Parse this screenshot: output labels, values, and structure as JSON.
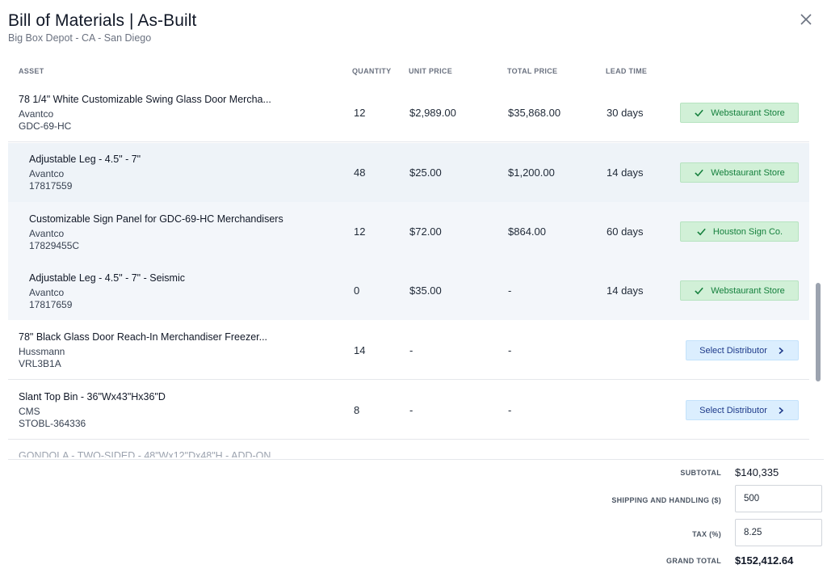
{
  "header": {
    "title": "Bill of Materials | As-Built",
    "subtitle": "Big Box Depot - CA - San Diego"
  },
  "columns": {
    "asset": "ASSET",
    "quantity": "QUANTITY",
    "unit_price": "UNIT PRICE",
    "total_price": "TOTAL PRICE",
    "lead_time": "LEAD TIME"
  },
  "rows": [
    {
      "name": "78 1/4\" White Customizable Swing Glass Door Mercha...",
      "brand": "Avantco",
      "sku": "GDC-69-HC",
      "qty": "12",
      "unit": "$2,989.00",
      "total": "$35,868.00",
      "lead": "30 days",
      "distributor": "Webstaurant Store"
    },
    {
      "name": "Adjustable Leg - 4.5\" - 7\"",
      "brand": "Avantco",
      "sku": "17817559",
      "qty": "48",
      "unit": "$25.00",
      "total": "$1,200.00",
      "lead": "14 days",
      "distributor": "Webstaurant Store"
    },
    {
      "name": "Customizable Sign Panel for GDC-69-HC Merchandisers",
      "brand": "Avantco",
      "sku": "17829455C",
      "qty": "12",
      "unit": "$72.00",
      "total": "$864.00",
      "lead": "60 days",
      "distributor": "Houston Sign Co."
    },
    {
      "name": "Adjustable Leg - 4.5\" - 7\" - Seismic",
      "brand": "Avantco",
      "sku": "17817659",
      "qty": "0",
      "unit": "$35.00",
      "total": "-",
      "lead": "14 days",
      "distributor": "Webstaurant Store"
    },
    {
      "name": "78\" Black Glass Door Reach-In Merchandiser Freezer...",
      "brand": "Hussmann",
      "sku": "VRL3B1A",
      "qty": "14",
      "unit": "-",
      "total": "-",
      "lead": "",
      "distributor_button": "Select Distributor"
    },
    {
      "name": "Slant Top Bin - 36\"Wx43\"Hx36\"D",
      "brand": "CMS",
      "sku": "STOBL-364336",
      "qty": "8",
      "unit": "-",
      "total": "-",
      "lead": "",
      "distributor_button": "Select Distributor"
    }
  ],
  "partial_row": "GONDOLA - TWO-SIDED - 48\"Wx12\"Dx48\"H - ADD-ON",
  "footer": {
    "subtotal_label": "SUBTOTAL",
    "subtotal_value": "$140,335",
    "shipping_label": "SHIPPING AND HANDLING ($)",
    "shipping_value": "500",
    "tax_label": "TAX (%)",
    "tax_value": "8.25",
    "grand_label": "GRAND TOTAL",
    "grand_value": "$152,412.64"
  },
  "colors": {
    "success_bg": "#d1f0d7",
    "success_text": "#15803d",
    "action_bg": "#dbeefe",
    "action_text": "#1e3a8a"
  }
}
